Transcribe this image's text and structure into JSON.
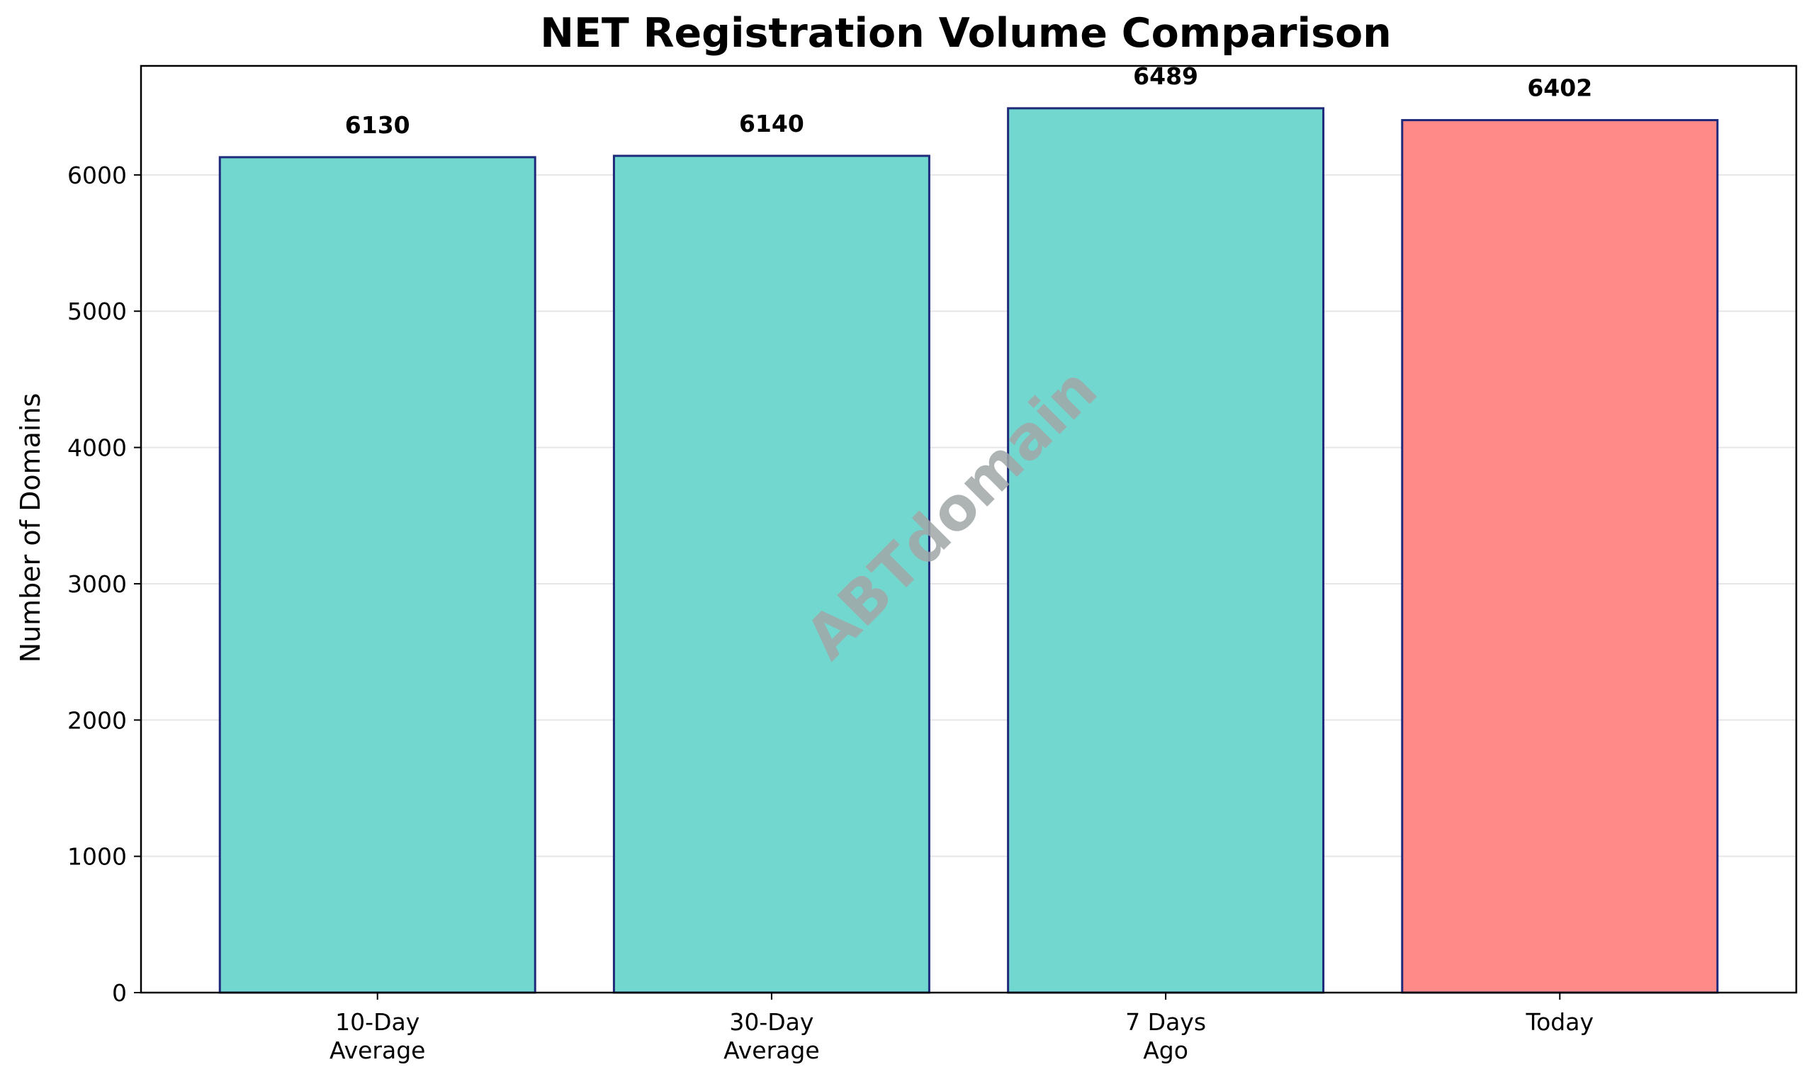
{
  "chart_data": {
    "type": "bar",
    "title": "NET Registration Volume Comparison",
    "xlabel": "",
    "ylabel": "Number of Domains",
    "categories": [
      [
        "10-Day",
        "Average"
      ],
      [
        "30-Day",
        "Average"
      ],
      [
        "7 Days",
        "Ago"
      ],
      [
        "Today"
      ]
    ],
    "values": [
      6130,
      6140,
      6489,
      6402
    ],
    "value_labels": [
      "6130",
      "6140",
      "6489",
      "6402"
    ],
    "bar_colors": [
      "#72d7cf",
      "#72d7cf",
      "#72d7cf",
      "#ff8a87"
    ],
    "bar_edge_color": "#1f2a7a",
    "ylim": [
      0,
      6800
    ],
    "yticks": [
      0,
      1000,
      2000,
      3000,
      4000,
      5000,
      6000
    ],
    "ytick_labels": [
      "0",
      "1000",
      "2000",
      "3000",
      "4000",
      "5000",
      "6000"
    ],
    "grid": true,
    "grid_axis": "y"
  },
  "watermark": {
    "text": "ABTdomain",
    "color": "#a0a8a8"
  }
}
